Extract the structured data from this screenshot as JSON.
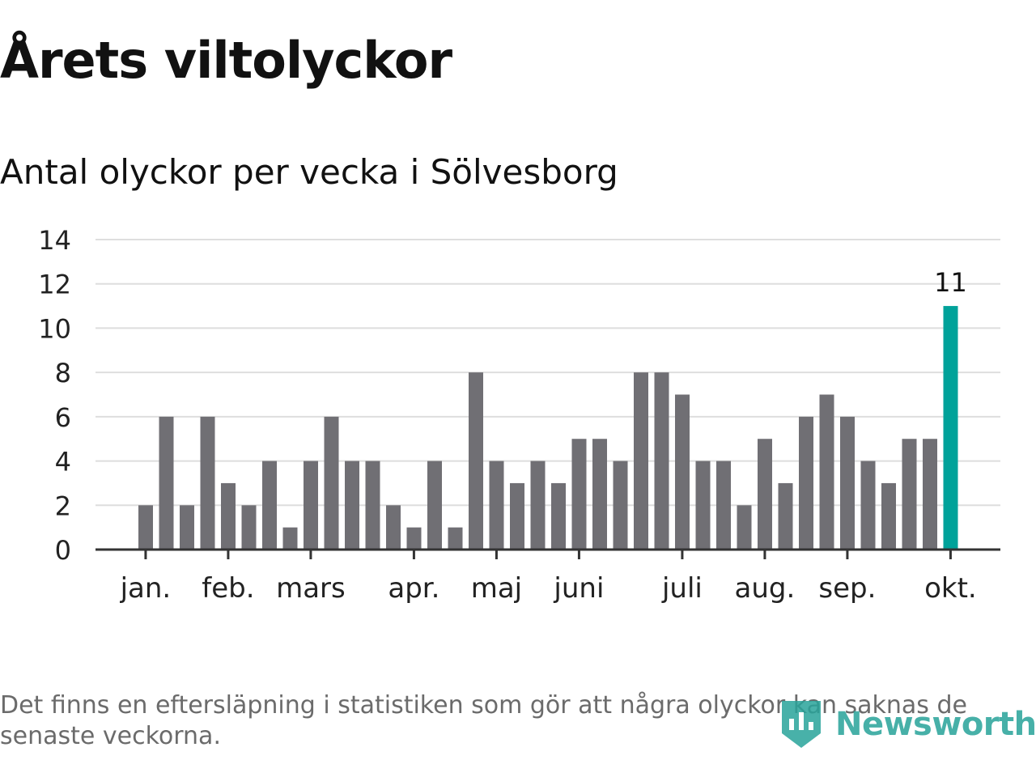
{
  "title": "Årets viltolyckor",
  "subtitle": "Antal olyckor per vecka i Sölvesborg",
  "footnote": "Det finns en eftersläpning i statistiken som gör att några olyckor kan saknas de senaste veckorna.",
  "brand": {
    "name": "Newsworthy",
    "icon": "newsworthy-logo-icon"
  },
  "colors": {
    "bar": "#706f74",
    "highlight": "#00a29a",
    "grid": "#dedede",
    "axis": "#333333",
    "text": "#222222"
  },
  "chart_data": {
    "type": "bar",
    "title": "Antal olyckor per vecka i Sölvesborg",
    "xlabel": "",
    "ylabel": "",
    "ylim": [
      0,
      14
    ],
    "yticks": [
      0,
      2,
      4,
      6,
      8,
      10,
      12,
      14
    ],
    "grid": true,
    "values": [
      2,
      6,
      2,
      6,
      3,
      2,
      4,
      1,
      4,
      6,
      4,
      4,
      2,
      1,
      4,
      1,
      8,
      4,
      3,
      4,
      3,
      5,
      5,
      4,
      8,
      8,
      7,
      4,
      4,
      2,
      5,
      3,
      6,
      7,
      6,
      4,
      3,
      5,
      5,
      11
    ],
    "highlight_index": 39,
    "highlight_label": "11",
    "month_ticks": [
      {
        "label": "jan.",
        "bar_index": 0.35
      },
      {
        "label": "feb.",
        "bar_index": 4.35
      },
      {
        "label": "mars",
        "bar_index": 8.35
      },
      {
        "label": "apr.",
        "bar_index": 13.35
      },
      {
        "label": "maj",
        "bar_index": 17.35
      },
      {
        "label": "juni",
        "bar_index": 21.35
      },
      {
        "label": "juli",
        "bar_index": 26.35
      },
      {
        "label": "aug.",
        "bar_index": 30.35
      },
      {
        "label": "sep.",
        "bar_index": 34.35
      },
      {
        "label": "okt.",
        "bar_index": 39.35
      }
    ]
  }
}
